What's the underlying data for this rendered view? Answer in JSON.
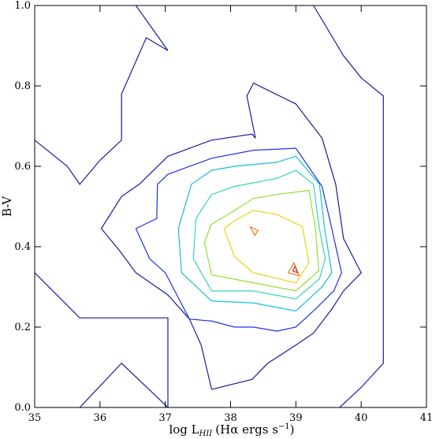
{
  "chart_data": {
    "type": "contour",
    "xlabel": "log L",
    "xlabel_sub": "HII",
    "xlabel_paren": "(Hα ergs s",
    "xlabel_exp": "−1",
    "xlabel_close": ")",
    "ylabel": "B-V",
    "xlim": [
      35,
      41
    ],
    "ylim": [
      0.0,
      1.0
    ],
    "x_ticks": [
      35,
      36,
      37,
      38,
      39,
      40,
      41
    ],
    "x_tick_labels": [
      "35",
      "36",
      "37",
      "38",
      "39",
      "40",
      "41"
    ],
    "y_ticks": [
      0.0,
      0.2,
      0.4,
      0.6,
      0.8,
      1.0
    ],
    "y_tick_labels": [
      "0.0",
      "0.2",
      "0.4",
      "0.6",
      "0.8",
      "1.0"
    ],
    "grid": false,
    "contours": [
      {
        "level": 1,
        "color": "#1a1aa0",
        "points": [
          [
            35.0,
            0.665
          ],
          [
            35.5,
            0.6
          ],
          [
            35.69,
            0.555
          ],
          [
            36.0,
            0.615
          ],
          [
            36.33,
            0.665
          ],
          [
            36.33,
            0.78
          ],
          [
            36.71,
            0.92
          ],
          [
            37.04,
            0.888
          ],
          [
            36.55,
            1.0
          ]
        ]
      },
      {
        "level": 1,
        "color": "#1a1aa0",
        "points": [
          [
            39.27,
            1.0
          ],
          [
            39.73,
            0.875
          ],
          [
            40.0,
            0.82
          ],
          [
            40.34,
            0.775
          ],
          [
            40.34,
            0.11
          ],
          [
            40.0,
            0.05
          ],
          [
            39.67,
            0.0
          ]
        ]
      },
      {
        "level": 1,
        "color": "#1a1aa0",
        "points": [
          [
            35.0,
            0.335
          ],
          [
            35.69,
            0.223
          ],
          [
            37.04,
            0.223
          ],
          [
            37.04,
            0.0
          ]
        ]
      },
      {
        "level": 1,
        "color": "#1a1aa0",
        "points": [
          [
            35.69,
            0.0
          ],
          [
            36.33,
            0.11
          ],
          [
            37.04,
            0.0
          ]
        ]
      },
      {
        "level": 1,
        "color": "#1a1aa0",
        "points": [
          [
            37.71,
            0.045
          ],
          [
            38.33,
            0.07
          ],
          [
            38.57,
            0.11
          ],
          [
            39.0,
            0.155
          ],
          [
            39.27,
            0.185
          ],
          [
            39.55,
            0.245
          ],
          [
            39.73,
            0.29
          ],
          [
            40.0,
            0.335
          ],
          [
            39.73,
            0.42
          ],
          [
            39.61,
            0.555
          ],
          [
            39.4,
            0.67
          ],
          [
            39.0,
            0.755
          ],
          [
            38.35,
            0.807
          ],
          [
            38.25,
            0.775
          ],
          [
            38.38,
            0.67
          ],
          [
            38.33,
            0.68
          ],
          [
            37.71,
            0.665
          ],
          [
            37.04,
            0.625
          ],
          [
            36.6,
            0.555
          ],
          [
            36.33,
            0.525
          ],
          [
            36.02,
            0.445
          ],
          [
            36.3,
            0.39
          ],
          [
            36.55,
            0.335
          ],
          [
            37.04,
            0.28
          ],
          [
            37.37,
            0.22
          ],
          [
            37.55,
            0.155
          ],
          [
            37.71,
            0.045
          ]
        ]
      },
      {
        "level": 2,
        "color": "#2030e0",
        "points": [
          [
            37.37,
            0.22
          ],
          [
            37.71,
            0.215
          ],
          [
            38.06,
            0.2
          ],
          [
            38.35,
            0.2
          ],
          [
            38.71,
            0.19
          ],
          [
            39.0,
            0.2
          ],
          [
            39.3,
            0.245
          ],
          [
            39.58,
            0.29
          ],
          [
            39.7,
            0.335
          ],
          [
            39.55,
            0.445
          ],
          [
            39.4,
            0.55
          ],
          [
            39.0,
            0.645
          ],
          [
            38.35,
            0.64
          ],
          [
            37.71,
            0.62
          ],
          [
            37.04,
            0.58
          ],
          [
            36.88,
            0.555
          ],
          [
            36.87,
            0.47
          ],
          [
            36.55,
            0.445
          ],
          [
            36.76,
            0.37
          ],
          [
            37.0,
            0.335
          ],
          [
            37.37,
            0.22
          ]
        ]
      },
      {
        "level": 3,
        "color": "#12c0d8",
        "points": [
          [
            37.71,
            0.265
          ],
          [
            38.35,
            0.26
          ],
          [
            39.0,
            0.24
          ],
          [
            39.4,
            0.3
          ],
          [
            39.55,
            0.335
          ],
          [
            39.44,
            0.445
          ],
          [
            39.36,
            0.555
          ],
          [
            39.0,
            0.625
          ],
          [
            38.71,
            0.61
          ],
          [
            38.06,
            0.6
          ],
          [
            37.71,
            0.59
          ],
          [
            37.4,
            0.555
          ],
          [
            37.2,
            0.445
          ],
          [
            37.25,
            0.335
          ],
          [
            37.71,
            0.265
          ]
        ]
      },
      {
        "level": 4,
        "color": "#2fd8b8",
        "points": [
          [
            37.71,
            0.29
          ],
          [
            38.35,
            0.29
          ],
          [
            39.0,
            0.27
          ],
          [
            39.36,
            0.32
          ],
          [
            39.45,
            0.37
          ],
          [
            39.36,
            0.445
          ],
          [
            39.27,
            0.555
          ],
          [
            39.0,
            0.59
          ],
          [
            38.71,
            0.57
          ],
          [
            38.06,
            0.55
          ],
          [
            37.71,
            0.53
          ],
          [
            37.47,
            0.47
          ],
          [
            37.43,
            0.37
          ],
          [
            37.71,
            0.29
          ]
        ]
      },
      {
        "level": 5,
        "color": "#90e030",
        "points": [
          [
            37.71,
            0.33
          ],
          [
            38.35,
            0.31
          ],
          [
            39.0,
            0.29
          ],
          [
            39.35,
            0.34
          ],
          [
            39.3,
            0.445
          ],
          [
            39.2,
            0.54
          ],
          [
            38.71,
            0.53
          ],
          [
            38.35,
            0.52
          ],
          [
            38.06,
            0.49
          ],
          [
            37.7,
            0.455
          ],
          [
            37.6,
            0.41
          ],
          [
            37.71,
            0.33
          ]
        ]
      },
      {
        "level": 6,
        "color": "#f0d010",
        "points": [
          [
            38.06,
            0.375
          ],
          [
            38.35,
            0.335
          ],
          [
            39.0,
            0.31
          ],
          [
            39.2,
            0.36
          ],
          [
            39.1,
            0.45
          ],
          [
            38.71,
            0.48
          ],
          [
            38.35,
            0.49
          ],
          [
            38.06,
            0.465
          ],
          [
            37.9,
            0.445
          ],
          [
            38.06,
            0.375
          ]
        ]
      },
      {
        "level": 7,
        "color": "#f07820",
        "points": [
          [
            38.3,
            0.45
          ],
          [
            38.42,
            0.44
          ],
          [
            38.37,
            0.428
          ],
          [
            38.3,
            0.45
          ]
        ]
      },
      {
        "level": 7,
        "color": "#f07820",
        "points": [
          [
            38.88,
            0.335
          ],
          [
            38.97,
            0.36
          ],
          [
            39.05,
            0.328
          ],
          [
            38.88,
            0.335
          ]
        ]
      },
      {
        "level": 8,
        "color": "#d83010",
        "points": [
          [
            38.95,
            0.34
          ],
          [
            38.99,
            0.352
          ],
          [
            39.02,
            0.335
          ],
          [
            38.95,
            0.34
          ]
        ]
      }
    ]
  }
}
